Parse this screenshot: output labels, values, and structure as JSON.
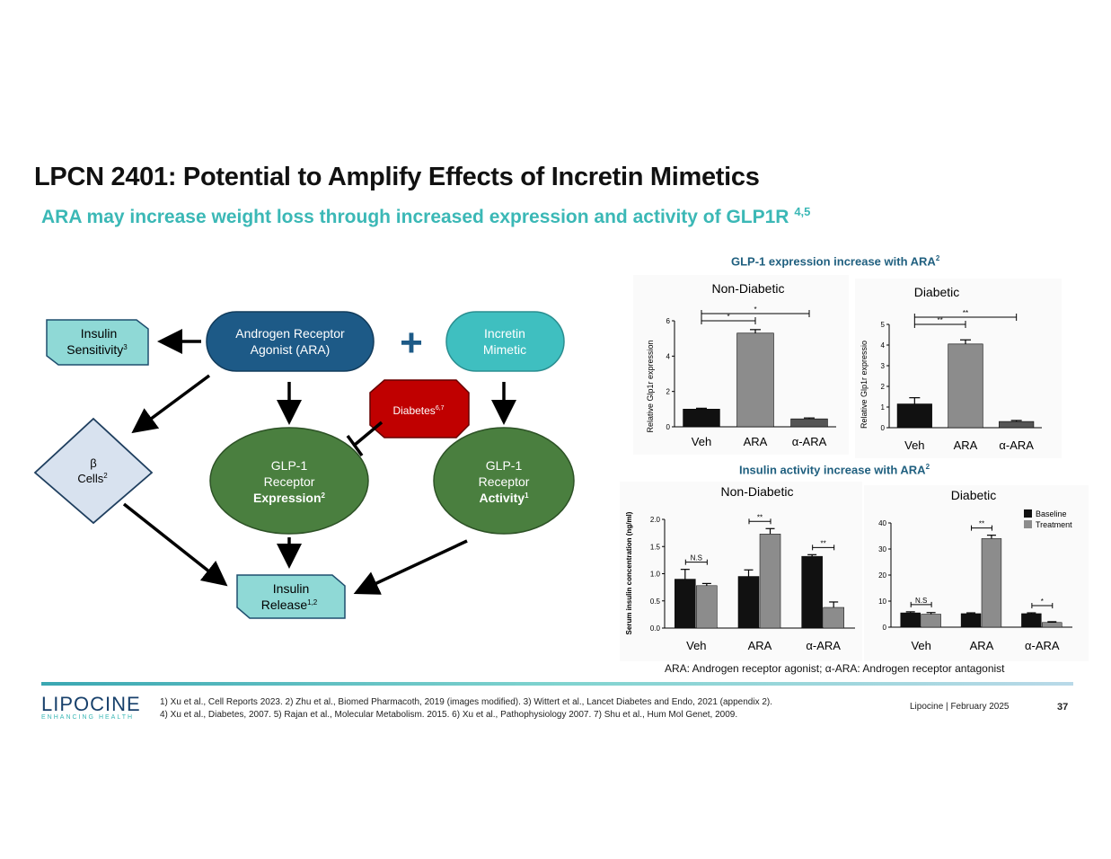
{
  "slide": {
    "title": "LPCN 2401: Potential to Amplify Effects of Incretin Mimetics",
    "subtitle": "ARA may increase weight loss through increased expression and activity of GLP1R",
    "subtitle_sup": "4,5"
  },
  "diagram": {
    "insulin_sensitivity": {
      "line1": "Insulin",
      "line2": "Sensitivity",
      "sup": "3"
    },
    "ara": {
      "line1": "Androgen Receptor",
      "line2": "Agonist (ARA)"
    },
    "plus_symbol": "+",
    "incretin": {
      "line1": "Incretin",
      "line2": "Mimetic"
    },
    "diabetes": {
      "label": "Diabetes",
      "sup": "6,7"
    },
    "beta_cells": {
      "line1": "β",
      "line2": "Cells",
      "sup": "2"
    },
    "glp1_expression": {
      "line1": "GLP-1",
      "line2": "Receptor",
      "line3": "Expression",
      "sup": "2"
    },
    "glp1_activity": {
      "line1": "GLP-1",
      "line2": "Receptor",
      "line3": "Activity",
      "sup": "1"
    },
    "insulin_release": {
      "line1": "Insulin",
      "line2": "Release",
      "sup": "1,2"
    },
    "colors": {
      "dark_blue": "#1d5a87",
      "teal": "#3fbfc0",
      "light_teal": "#8fd9d6",
      "green": "#4a7f3f",
      "red": "#c00000",
      "diamond": "#d8e2ef"
    }
  },
  "captions": {
    "expression": "GLP-1 expression increase with ARA",
    "expression_sup": "2",
    "activity": "Insulin activity increase with ARA",
    "activity_sup": "2"
  },
  "chart_data": [
    {
      "type": "bar",
      "title": "Non-Diabetic",
      "ylabel": "Relative Glp1r expression",
      "categories": [
        "Veh",
        "ARA",
        "α-ARA"
      ],
      "values": [
        1.0,
        5.3,
        0.45
      ],
      "errors": [
        0.05,
        0.2,
        0.05
      ],
      "ylim": [
        0,
        6
      ],
      "yticks": [
        "0",
        "2",
        "4",
        "6"
      ],
      "sig": [
        {
          "label": "*",
          "from": "Veh",
          "to": "ARA"
        },
        {
          "label": "*",
          "from": "Veh",
          "to": "α-ARA"
        }
      ],
      "bar_colors": [
        "#111111",
        "#8c8c8c",
        "#555555"
      ]
    },
    {
      "type": "bar",
      "title": "Diabetic",
      "ylabel": "Relative Glp1r expressio",
      "categories": [
        "Veh",
        "ARA",
        "α-ARA"
      ],
      "values": [
        1.15,
        4.05,
        0.3
      ],
      "errors": [
        0.3,
        0.2,
        0.05
      ],
      "ylim": [
        0,
        5
      ],
      "yticks": [
        "0",
        "1",
        "2",
        "3",
        "4",
        "5"
      ],
      "sig": [
        {
          "label": "**",
          "from": "Veh",
          "to": "ARA"
        },
        {
          "label": "**",
          "from": "Veh",
          "to": "α-ARA"
        }
      ],
      "bar_colors": [
        "#111111",
        "#8c8c8c",
        "#555555"
      ]
    },
    {
      "type": "bar",
      "title": "Non-Diabetic",
      "ylabel": "Serum insulin concentration (ng/ml)",
      "categories": [
        "Veh",
        "ARA",
        "α-ARA"
      ],
      "series": [
        {
          "name": "Baseline",
          "values": [
            0.9,
            0.95,
            1.32
          ],
          "errors": [
            0.18,
            0.12,
            0.03
          ]
        },
        {
          "name": "Treatment",
          "values": [
            0.78,
            1.73,
            0.38
          ],
          "errors": [
            0.04,
            0.1,
            0.1
          ]
        }
      ],
      "ylim": [
        0,
        2.0
      ],
      "yticks": [
        "0.0",
        "0.5",
        "1.0",
        "1.5",
        "2.0"
      ],
      "sig": [
        "N.S",
        "**",
        "**"
      ]
    },
    {
      "type": "bar",
      "title": "Diabetic",
      "ylabel": "",
      "categories": [
        "Veh",
        "ARA",
        "α-ARA"
      ],
      "series": [
        {
          "name": "Baseline",
          "values": [
            5.5,
            5.2,
            5.2
          ],
          "errors": [
            0.4,
            0.3,
            0.3
          ]
        },
        {
          "name": "Treatment",
          "values": [
            5.0,
            34.0,
            1.8
          ],
          "errors": [
            0.6,
            1.3,
            0.3
          ]
        }
      ],
      "ylim": [
        0,
        40
      ],
      "yticks": [
        "0",
        "10",
        "20",
        "30",
        "40"
      ],
      "sig": [
        "N.S",
        "**",
        "*"
      ],
      "legend": [
        "Baseline",
        "Treatment"
      ],
      "legend_colors": [
        "#111111",
        "#8c8c8c"
      ]
    }
  ],
  "acronyms": "ARA: Androgen receptor agonist;  α-ARA: Androgen receptor antagonist",
  "footer": {
    "footnote1": "1) Xu et al., Cell Reports 2023. 2) Zhu et al., Biomed Pharmacoth, 2019 (images modified). 3) Wittert et al., Lancet Diabetes and Endo, 2021 (appendix 2).",
    "footnote2": "4) Xu et al., Diabetes, 2007. 5) Rajan et al., Molecular Metabolism. 2015. 6) Xu et al., Pathophysiology 2007. 7) Shu et al., Hum Mol Genet, 2009.",
    "logo_main": "LIPOCINE",
    "logo_tag": "ENHANCING HEALTH",
    "company": "Lipocine",
    "separator": "|",
    "date": "February 2025",
    "page": "37"
  }
}
